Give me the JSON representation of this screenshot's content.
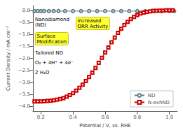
{
  "chart_data": {
    "type": "line",
    "xlabel": "Potential / V, vs. RHE",
    "ylabel": "Current Density / mA cm⁻²",
    "xlim": [
      0.15,
      1.05
    ],
    "ylim": [
      -4.2,
      0.2
    ],
    "xticks": [
      0.2,
      0.4,
      0.6,
      0.8,
      {
        "value": 1.0,
        "label": "1.0"
      }
    ],
    "yticks": [
      {
        "value": 0.0,
        "label": "0.0"
      },
      {
        "value": -0.5,
        "label": "−0.5"
      },
      {
        "value": -1.0,
        "label": "−1.0"
      },
      {
        "value": -1.5,
        "label": "−1.5"
      },
      {
        "value": -2.0,
        "label": "−2.0"
      },
      {
        "value": -2.5,
        "label": "−2.5"
      },
      {
        "value": -3.0,
        "label": "−3.0"
      },
      {
        "value": -3.5,
        "label": "−3.5"
      },
      {
        "value": -4.0,
        "label": "−4.0"
      }
    ],
    "grid": false,
    "legend": "lower right",
    "series": [
      {
        "name": "ND",
        "color": "#607d8b",
        "marker": "circle",
        "x": [
          0.16,
          0.18,
          0.2,
          0.22,
          0.25,
          0.28,
          0.31,
          0.35,
          0.4,
          0.45,
          0.5,
          0.55,
          0.6,
          0.65,
          0.7,
          0.75,
          0.8,
          0.85,
          0.9,
          0.95,
          1.0,
          1.03
        ],
        "values": [
          -0.03,
          -0.03,
          -0.03,
          -0.03,
          -0.03,
          -0.03,
          -0.03,
          -0.03,
          -0.03,
          -0.03,
          -0.03,
          -0.03,
          -0.03,
          -0.03,
          -0.03,
          -0.03,
          -0.03,
          -0.03,
          -0.03,
          -0.03,
          -0.03,
          -0.03
        ]
      },
      {
        "name": "N-exhND",
        "color": "#cc0000",
        "marker": "square",
        "x": [
          0.16,
          0.18,
          0.2,
          0.22,
          0.24,
          0.26,
          0.28,
          0.3,
          0.32,
          0.34,
          0.36,
          0.38,
          0.4,
          0.42,
          0.44,
          0.46,
          0.48,
          0.5,
          0.52,
          0.54,
          0.56,
          0.58,
          0.6,
          0.62,
          0.64,
          0.66,
          0.68,
          0.7,
          0.72,
          0.74,
          0.76,
          0.78,
          0.8,
          0.82,
          0.84,
          0.86,
          0.88,
          0.9,
          0.92,
          0.94,
          0.96,
          0.98,
          1.0,
          1.02
        ],
        "values": [
          -3.8,
          -3.8,
          -3.8,
          -3.79,
          -3.78,
          -3.77,
          -3.75,
          -3.73,
          -3.7,
          -3.66,
          -3.6,
          -3.53,
          -3.45,
          -3.35,
          -3.23,
          -3.1,
          -2.95,
          -2.78,
          -2.6,
          -2.4,
          -2.19,
          -1.98,
          -1.76,
          -1.55,
          -1.33,
          -1.13,
          -0.94,
          -0.77,
          -0.61,
          -0.48,
          -0.36,
          -0.27,
          -0.19,
          -0.13,
          -0.09,
          -0.06,
          -0.04,
          -0.02,
          -0.02,
          -0.01,
          -0.01,
          -0.0,
          -0.0,
          -0.0
        ]
      }
    ],
    "annotations": [
      "Nanodiamond\n(ND)",
      "Surface\nModification",
      "Tailored ND",
      "O₂ + 4H⁺ + 4e⁻",
      "2 H₂O",
      "Increased\nORR Activity"
    ]
  }
}
